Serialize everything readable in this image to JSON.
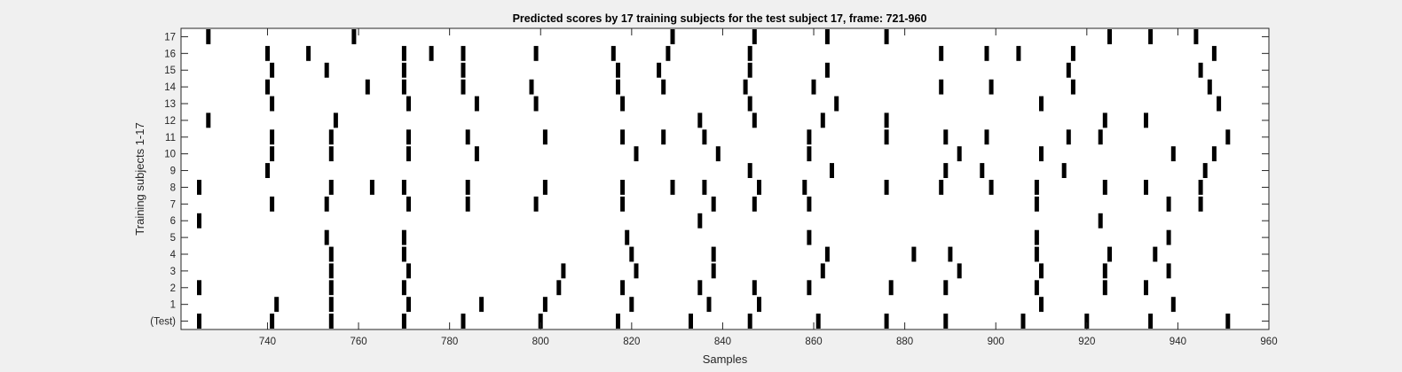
{
  "chart_data": {
    "type": "event_raster",
    "title": "Predicted scores by 17 training subjects for the test subject 17, frame: 721-960",
    "xlabel": "Samples",
    "ylabel": "Training subjects 1-17",
    "xlim": [
      721,
      960
    ],
    "x_ticks": [
      740,
      760,
      780,
      800,
      820,
      840,
      860,
      880,
      900,
      920,
      940,
      960
    ],
    "y_categories": [
      "(Test)",
      "1",
      "2",
      "3",
      "4",
      "5",
      "6",
      "7",
      "8",
      "9",
      "10",
      "11",
      "12",
      "13",
      "14",
      "15",
      "16",
      "17"
    ],
    "grid": false,
    "legend": "none",
    "colors": {
      "background": "#f0f0f0",
      "plot_area": "#ffffff",
      "marks": "#000000"
    },
    "rows": [
      {
        "label": "(Test)",
        "x": [
          725,
          741,
          754,
          770,
          783,
          800,
          817,
          833,
          846,
          861,
          876,
          889,
          906,
          920,
          934,
          951
        ]
      },
      {
        "label": "1",
        "x": [
          742,
          754,
          771,
          787,
          801,
          820,
          837,
          848,
          910,
          939
        ]
      },
      {
        "label": "2",
        "x": [
          725,
          754,
          770,
          804,
          818,
          835,
          847,
          859,
          877,
          889,
          909,
          924,
          933
        ]
      },
      {
        "label": "3",
        "x": [
          754,
          771,
          805,
          821,
          838,
          862,
          892,
          910,
          924,
          938
        ]
      },
      {
        "label": "4",
        "x": [
          754,
          770,
          820,
          838,
          863,
          882,
          890,
          909,
          925,
          935
        ]
      },
      {
        "label": "5",
        "x": [
          753,
          770,
          819,
          859,
          909,
          938
        ]
      },
      {
        "label": "6",
        "x": [
          725,
          835,
          923
        ]
      },
      {
        "label": "7",
        "x": [
          741,
          753,
          771,
          784,
          799,
          818,
          838,
          847,
          859,
          909,
          938,
          945
        ]
      },
      {
        "label": "8",
        "x": [
          725,
          754,
          763,
          770,
          784,
          801,
          818,
          829,
          836,
          848,
          858,
          876,
          888,
          899,
          909,
          924,
          933,
          945
        ]
      },
      {
        "label": "9",
        "x": [
          740,
          846,
          864,
          889,
          897,
          915,
          946
        ]
      },
      {
        "label": "10",
        "x": [
          741,
          754,
          771,
          786,
          821,
          839,
          859,
          892,
          910,
          939,
          948
        ]
      },
      {
        "label": "11",
        "x": [
          741,
          754,
          771,
          784,
          801,
          818,
          827,
          836,
          859,
          876,
          889,
          898,
          916,
          923,
          951
        ]
      },
      {
        "label": "12",
        "x": [
          727,
          755,
          835,
          847,
          862,
          876,
          924,
          933
        ]
      },
      {
        "label": "13",
        "x": [
          741,
          771,
          786,
          799,
          818,
          846,
          865,
          910,
          949
        ]
      },
      {
        "label": "14",
        "x": [
          740,
          762,
          770,
          783,
          798,
          817,
          827,
          845,
          860,
          888,
          899,
          917,
          947
        ]
      },
      {
        "label": "15",
        "x": [
          741,
          753,
          770,
          783,
          817,
          826,
          846,
          863,
          916,
          945
        ]
      },
      {
        "label": "16",
        "x": [
          740,
          749,
          770,
          776,
          783,
          799,
          816,
          828,
          846,
          888,
          898,
          905,
          917,
          948
        ]
      },
      {
        "label": "17",
        "x": [
          727,
          759,
          829,
          847,
          863,
          876,
          925,
          934,
          944
        ]
      }
    ]
  }
}
